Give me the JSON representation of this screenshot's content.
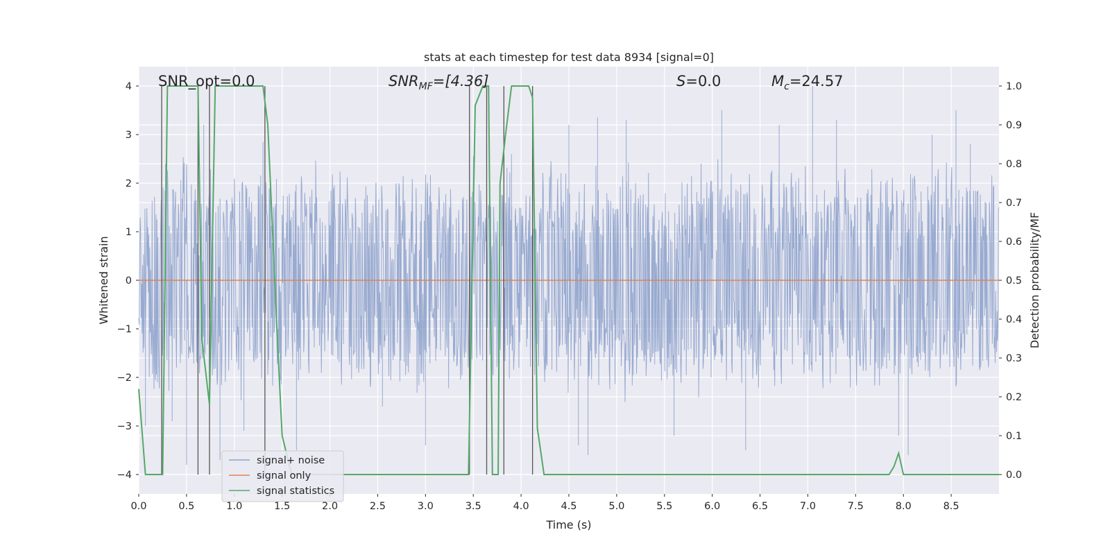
{
  "chart_data": {
    "type": "line",
    "title": "stats at each timestep for test data 8934 [signal=0]",
    "xlabel": "Time (s)",
    "ylabel_left": "Whitened strain",
    "ylabel_right": "Detection probability/MF",
    "xlim": [
      0.0,
      9.0
    ],
    "ylim_left": [
      -4.4,
      4.4
    ],
    "ylim_right": [
      -0.05,
      1.05
    ],
    "x_ticks": [
      "0.0",
      "0.5",
      "1.0",
      "1.5",
      "2.0",
      "2.5",
      "3.0",
      "3.5",
      "4.0",
      "4.5",
      "5.0",
      "5.5",
      "6.0",
      "6.5",
      "7.0",
      "7.5",
      "8.0",
      "8.5"
    ],
    "x_tick_values": [
      0.0,
      0.5,
      1.0,
      1.5,
      2.0,
      2.5,
      3.0,
      3.5,
      4.0,
      4.5,
      5.0,
      5.5,
      6.0,
      6.5,
      7.0,
      7.5,
      8.0,
      8.5
    ],
    "y_left_ticks": [
      "4",
      "3",
      "2",
      "1",
      "0",
      "−1",
      "−2",
      "−3",
      "−4"
    ],
    "y_left_tick_values": [
      4,
      3,
      2,
      1,
      0,
      -1,
      -2,
      -3,
      -4
    ],
    "y_right_ticks": [
      "1.0",
      "0.9",
      "0.8",
      "0.7",
      "0.6",
      "0.5",
      "0.4",
      "0.3",
      "0.2",
      "0.1",
      "0.0"
    ],
    "y_right_tick_values": [
      1.0,
      0.9,
      0.8,
      0.7,
      0.6,
      0.5,
      0.4,
      0.3,
      0.2,
      0.1,
      0.0
    ],
    "grid": true,
    "legend_placement": "lower-left",
    "annotations": {
      "snr_opt": "SNR_opt=0.0",
      "snr_mf_base": "SNR",
      "snr_mf_sub": "MF",
      "snr_mf_value": "=[4.36]",
      "s_base": "S",
      "s_value": "=0.0",
      "mc_base": "M",
      "mc_sub": "c",
      "mc_value": "=24.57"
    },
    "series": [
      {
        "name": "signal+ noise",
        "color": "#8fa3cc",
        "axis": "left",
        "description_kind": "noise",
        "envelope_upper": [
          1.4,
          2.0,
          2.4,
          2.7,
          2.6,
          2.5,
          2.3,
          2.6,
          2.5,
          2.4,
          2.3,
          2.6,
          2.5,
          2.4,
          2.6,
          2.4,
          2.3,
          2.2,
          2.4,
          2.3,
          2.4,
          2.2,
          2.3,
          2.6,
          2.4,
          2.5,
          2.4,
          2.3,
          2.6,
          2.5,
          2.4,
          2.5,
          2.4,
          2.5,
          2.6,
          2.4,
          2.5,
          2.3,
          2.5,
          2.7,
          2.6,
          2.4,
          2.5,
          2.4,
          2.5,
          2.6,
          2.5,
          2.4,
          2.5,
          2.6,
          2.4,
          2.5,
          2.6,
          2.5,
          2.4,
          2.5,
          2.6,
          2.5,
          2.4,
          2.5
        ],
        "envelope_lower": [
          -1.6,
          -2.6,
          -2.5,
          -2.4,
          -2.5,
          -2.3,
          -2.4,
          -2.6,
          -2.5,
          -2.4,
          -2.3,
          -2.5,
          -2.4,
          -2.3,
          -2.4,
          -2.2,
          -2.3,
          -2.4,
          -2.5,
          -2.6,
          -2.4,
          -2.5,
          -2.3,
          -2.5,
          -2.4,
          -2.3,
          -2.5,
          -2.4,
          -2.6,
          -2.5,
          -2.4,
          -2.3,
          -2.5,
          -2.6,
          -2.4,
          -2.5,
          -2.3,
          -2.4,
          -2.6,
          -2.5,
          -2.4,
          -2.3,
          -2.5,
          -2.4,
          -2.5,
          -2.6,
          -2.4,
          -2.5,
          -2.3,
          -2.4,
          -2.5,
          -2.6,
          -2.4,
          -2.5,
          -2.4,
          -2.3,
          -2.5,
          -2.4,
          -2.5,
          -2.3
        ],
        "spikes": [
          [
            0.07,
            -3.0
          ],
          [
            0.28,
            2.4
          ],
          [
            0.35,
            -2.9
          ],
          [
            0.5,
            -3.8
          ],
          [
            0.68,
            3.2
          ],
          [
            0.85,
            -3.7
          ],
          [
            1.1,
            -3.1
          ],
          [
            1.3,
            2.85
          ],
          [
            1.65,
            -3.5
          ],
          [
            2.55,
            -2.6
          ],
          [
            3.0,
            -3.4
          ],
          [
            3.9,
            2.6
          ],
          [
            4.5,
            3.2
          ],
          [
            4.6,
            -3.4
          ],
          [
            4.7,
            -3.6
          ],
          [
            4.8,
            3.35
          ],
          [
            5.1,
            3.3
          ],
          [
            5.6,
            -3.2
          ],
          [
            6.1,
            3.5
          ],
          [
            6.35,
            -3.5
          ],
          [
            6.7,
            3.2
          ],
          [
            7.05,
            4.0
          ],
          [
            7.3,
            3.3
          ],
          [
            7.95,
            -3.2
          ],
          [
            8.05,
            -3.6
          ],
          [
            8.3,
            3.0
          ],
          [
            8.55,
            3.5
          ],
          [
            8.7,
            2.8
          ]
        ]
      },
      {
        "name": "signal only",
        "color": "#dd8452",
        "axis": "left",
        "x": [
          0.0,
          9.0
        ],
        "y": [
          0.0,
          0.0
        ]
      },
      {
        "name": "signal statistics",
        "color": "#55a868",
        "axis": "right",
        "x": [
          0.0,
          0.07,
          0.25,
          0.3,
          0.62,
          0.66,
          0.74,
          0.8,
          1.3,
          1.35,
          1.45,
          1.5,
          1.6,
          3.45,
          3.52,
          3.6,
          3.66,
          3.7,
          3.76,
          3.78,
          3.84,
          3.9,
          4.08,
          4.12,
          4.17,
          4.24,
          4.7,
          4.8,
          7.85,
          7.9,
          7.95,
          8.0,
          9.0
        ],
        "y": [
          0.22,
          0.0,
          0.0,
          1.0,
          1.0,
          0.35,
          0.18,
          1.0,
          1.0,
          0.9,
          0.35,
          0.1,
          0.0,
          0.0,
          0.95,
          1.0,
          1.0,
          0.0,
          0.0,
          0.75,
          0.88,
          1.0,
          1.0,
          0.97,
          0.12,
          0.0,
          0.0,
          0.0,
          0.0,
          0.02,
          0.055,
          0.0,
          0.0
        ]
      }
    ],
    "vertical_markers_x": [
      0.24,
      0.62,
      0.74,
      1.32,
      3.46,
      3.64,
      3.82,
      4.12
    ]
  }
}
